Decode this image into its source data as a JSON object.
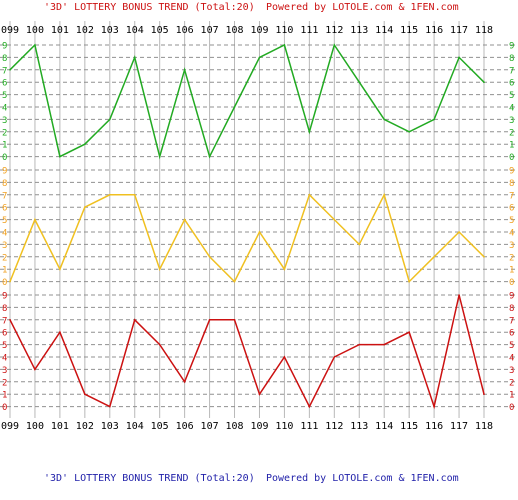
{
  "header": {
    "title_red": "'3D' LOTTERY BONUS TREND (Total:20)",
    "powered_red": "Powered by LOTOLE.com & 1FEN.com"
  },
  "footer": {
    "title_blue": "'3D' LOTTERY BONUS TREND (Total:20)",
    "powered_blue": "Powered by LOTOLE.com & 1FEN.com"
  },
  "chart_data": {
    "type": "line",
    "title": "'3D' LOTTERY BONUS TREND (Total:20)",
    "x": [
      "099",
      "100",
      "101",
      "102",
      "103",
      "104",
      "105",
      "106",
      "107",
      "108",
      "109",
      "110",
      "111",
      "112",
      "113",
      "114",
      "115",
      "116",
      "117",
      "118"
    ],
    "y_ticks": [
      0,
      1,
      2,
      3,
      4,
      5,
      6,
      7,
      8,
      9
    ],
    "panels": [
      {
        "position": "top",
        "color": "#22aa22",
        "values": [
          7,
          9,
          0,
          1,
          3,
          8,
          0,
          7,
          0,
          4,
          8,
          9,
          2,
          9,
          6,
          3,
          2,
          3,
          8,
          6
        ]
      },
      {
        "position": "middle",
        "color": "#f0c020",
        "values": [
          0,
          5,
          1,
          6,
          7,
          7,
          1,
          5,
          2,
          0,
          4,
          1,
          7,
          5,
          3,
          7,
          0,
          2,
          4,
          2
        ]
      },
      {
        "position": "bottom",
        "color": "#cc1111",
        "values": [
          7,
          3,
          6,
          1,
          0,
          7,
          5,
          2,
          7,
          7,
          1,
          4,
          0,
          4,
          5,
          5,
          6,
          0,
          9,
          1
        ]
      }
    ],
    "tick_colors": {
      "top": "#22aa22",
      "middle": "#f0a020",
      "bottom": "#cc1111"
    },
    "grid": true
  }
}
